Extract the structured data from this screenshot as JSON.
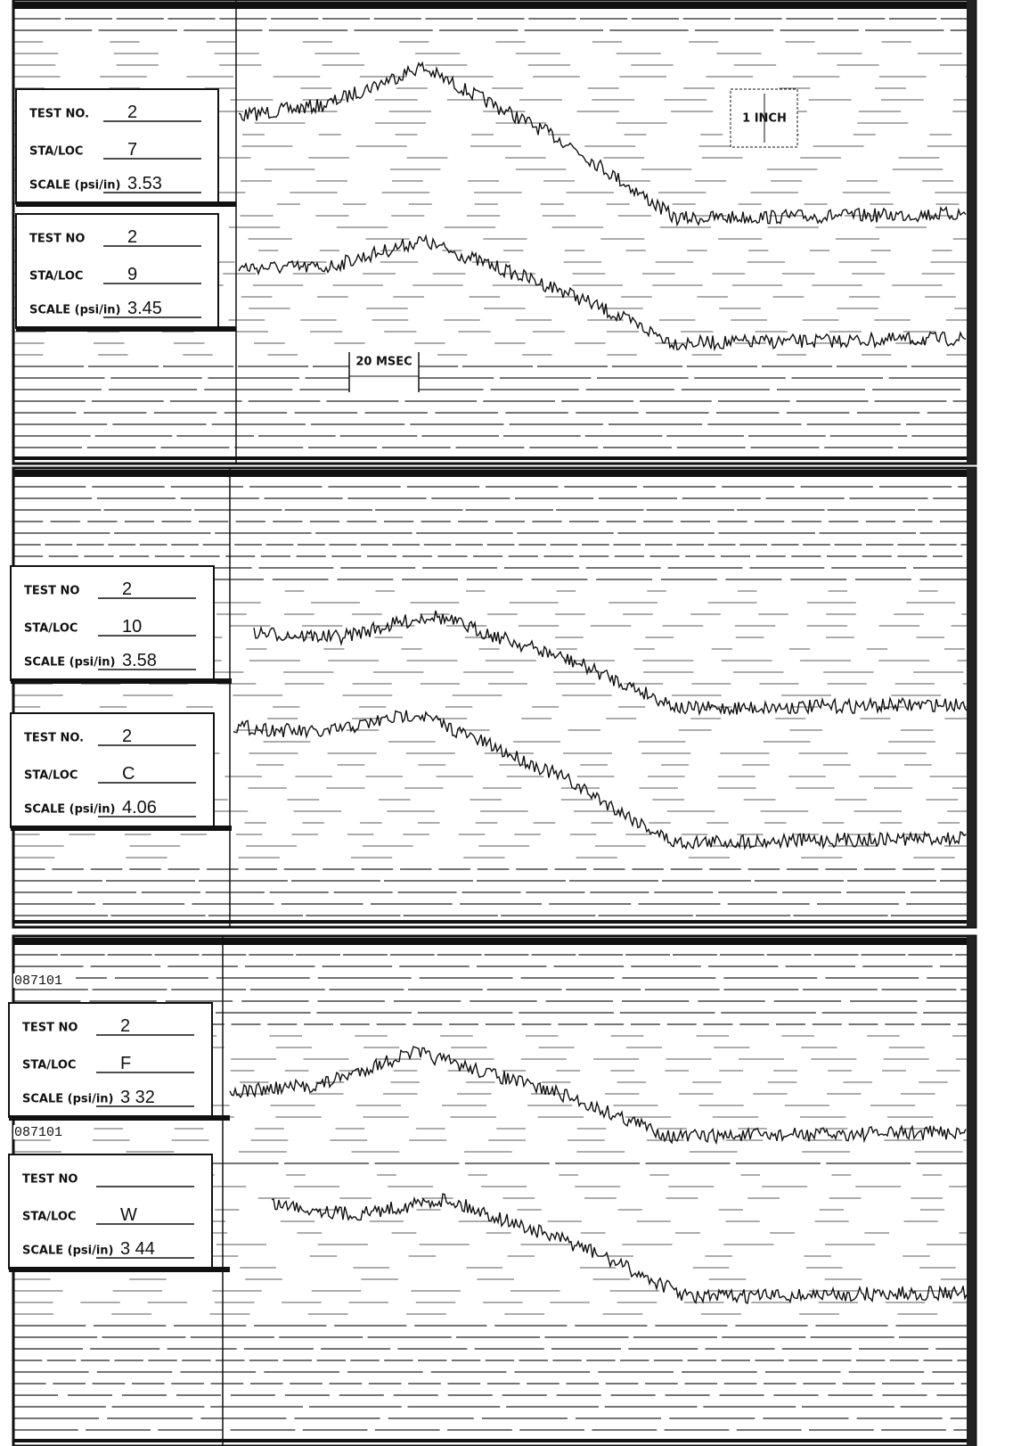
{
  "panels": [
    {
      "traces": [
        {
          "test_no_label": "TEST NO.",
          "test_no": "2",
          "sta_loc_label": "STA/LOC",
          "sta_loc": "7",
          "scale_label": "SCALE (psi/in)",
          "scale": "3.53"
        },
        {
          "test_no_label": "TEST NO",
          "test_no": "2",
          "sta_loc_label": "STA/LOC",
          "sta_loc": "9",
          "scale_label": "SCALE (psi/in)",
          "scale": "3.45"
        }
      ],
      "annotations": [
        "1 INCH",
        "20 MSEC"
      ]
    },
    {
      "traces": [
        {
          "test_no_label": "TEST NO",
          "test_no": "2",
          "sta_loc_label": "STA/LOC",
          "sta_loc": "10",
          "scale_label": "SCALE (psi/in)",
          "scale": "3.58"
        },
        {
          "test_no_label": "TEST NO.",
          "test_no": "2",
          "sta_loc_label": "STA/LOC",
          "sta_loc": "C",
          "scale_label": "SCALE (psi/in)",
          "scale": "4.06"
        }
      ]
    },
    {
      "film_ids": [
        "087101",
        "087101"
      ],
      "traces": [
        {
          "test_no_label": "TEST NO",
          "test_no": "2",
          "sta_loc_label": "STA/LOC",
          "sta_loc": "F",
          "scale_label": "SCALE (psi/in)",
          "scale": "3 32"
        },
        {
          "test_no_label": "TEST NO",
          "sta_loc_label": "STA/LOC",
          "sta_loc": "W",
          "scale_label": "SCALE (psi/in)",
          "scale": "3 44"
        }
      ]
    }
  ]
}
